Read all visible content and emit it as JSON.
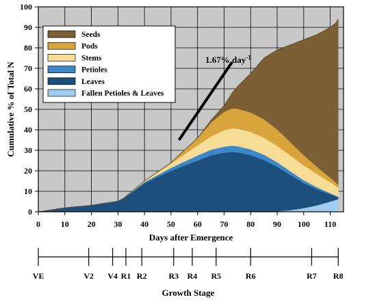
{
  "chart_data": {
    "type": "area",
    "stacked": true,
    "xlabel": "Days after Emergence",
    "ylabel": "Cumulative % of Total N",
    "xlim": [
      0,
      115
    ],
    "ylim": [
      0,
      100
    ],
    "xticks": [
      0,
      10,
      20,
      30,
      40,
      50,
      60,
      70,
      80,
      90,
      100,
      110
    ],
    "yticks": [
      0,
      10,
      20,
      30,
      40,
      50,
      60,
      70,
      80,
      90,
      100
    ],
    "grid": true,
    "background": "#c8c8c8",
    "legend_position": "top-left",
    "x": [
      0,
      10,
      20,
      30,
      32,
      40,
      50,
      60,
      65,
      70,
      73,
      75,
      80,
      85,
      90,
      95,
      100,
      105,
      110,
      112,
      113
    ],
    "series": [
      {
        "name": "Fallen Petioles & Leaves",
        "color": "#9ecdf0",
        "values": [
          0,
          0,
          0,
          0,
          0,
          0,
          0,
          0,
          0,
          0,
          0,
          0,
          0,
          0,
          0.3,
          0.8,
          1.8,
          3.2,
          5,
          5.8,
          6.2
        ]
      },
      {
        "name": "Leaves",
        "color": "#1d4f7c",
        "values": [
          0,
          2,
          3.2,
          5.2,
          6.5,
          14,
          20,
          25,
          27.5,
          28.8,
          29.2,
          29,
          27.7,
          25.3,
          21.7,
          17.2,
          12.2,
          7.8,
          3.5,
          1.8,
          0.8
        ]
      },
      {
        "name": "Petioles",
        "color": "#3b87c8",
        "values": [
          0,
          0,
          0,
          0,
          0,
          0.5,
          1.5,
          2.5,
          2.8,
          3,
          3.1,
          3,
          2.8,
          2.6,
          2.2,
          1.8,
          1.4,
          1,
          0.6,
          0.4,
          0.3
        ]
      },
      {
        "name": "Stems",
        "color": "#f7dc96",
        "values": [
          0,
          0,
          0,
          0,
          0,
          0.5,
          2,
          5,
          6.5,
          8,
          8.5,
          8.6,
          8.5,
          8.3,
          8,
          7.7,
          7.3,
          6.5,
          5.3,
          4.8,
          4.5
        ]
      },
      {
        "name": "Pods",
        "color": "#d8a53c",
        "values": [
          0,
          0,
          0,
          0,
          0,
          0,
          0.5,
          3.5,
          6.7,
          9,
          9.7,
          9.7,
          9.5,
          9,
          8,
          6.5,
          5,
          3.5,
          2.2,
          1.7,
          1.5
        ]
      },
      {
        "name": "Seeds",
        "color": "#7c5f34",
        "values": [
          0,
          0,
          0,
          0,
          0,
          0,
          0,
          0,
          1,
          3,
          7.5,
          10.7,
          19,
          29.8,
          38.8,
          47.5,
          56.3,
          64.5,
          73.4,
          77.5,
          80.7
        ]
      }
    ],
    "legend_order": [
      "Seeds",
      "Pods",
      "Stems",
      "Petioles",
      "Leaves",
      "Fallen Petioles & Leaves"
    ],
    "annotation": {
      "text": "1.67% day",
      "superscript": "-1",
      "line": {
        "x1": 53,
        "y1": 35,
        "x2": 73,
        "y2": 73
      }
    },
    "growth_stage": {
      "title": "Growth Stage",
      "stages": [
        {
          "label": "VE",
          "day": 0
        },
        {
          "label": "V2",
          "day": 19
        },
        {
          "label": "V4",
          "day": 28
        },
        {
          "label": "R1",
          "day": 33
        },
        {
          "label": "R2",
          "day": 39
        },
        {
          "label": "R3",
          "day": 51
        },
        {
          "label": "R4",
          "day": 58
        },
        {
          "label": "R5",
          "day": 67
        },
        {
          "label": "R6",
          "day": 80
        },
        {
          "label": "R7",
          "day": 103
        },
        {
          "label": "R8",
          "day": 113
        }
      ]
    }
  }
}
